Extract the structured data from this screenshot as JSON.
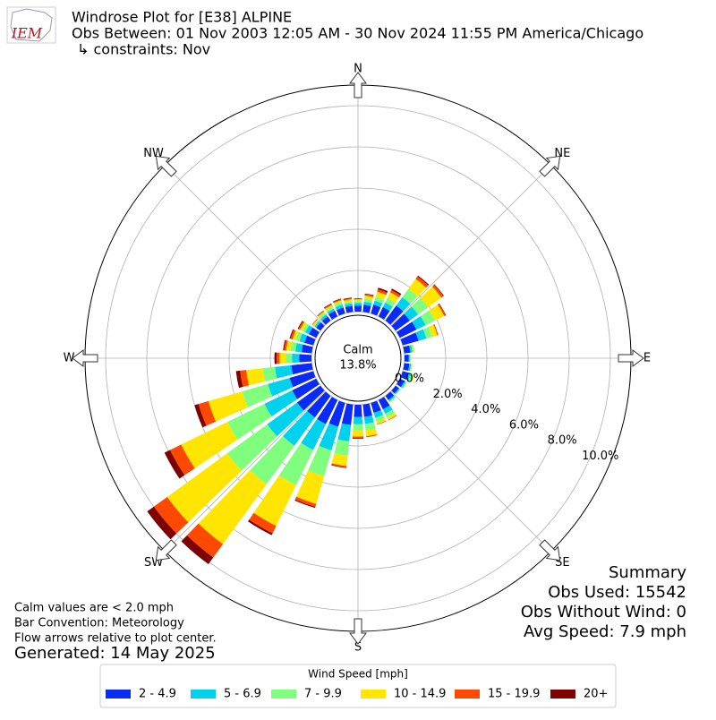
{
  "chart_data": {
    "type": "windrose",
    "logo_text": "IEM",
    "title": "Windrose Plot for [E38] ALPINE",
    "subtitle": "Obs Between: 01 Nov 2003 12:05 AM - 30 Nov 2024 11:55 PM America/Chicago",
    "constraints": "↳ constraints: Nov",
    "directions": [
      0,
      10,
      20,
      30,
      40,
      50,
      60,
      70,
      80,
      90,
      100,
      110,
      120,
      130,
      140,
      150,
      160,
      170,
      180,
      190,
      200,
      210,
      220,
      230,
      240,
      250,
      260,
      270,
      280,
      290,
      300,
      310,
      320,
      330,
      340,
      350
    ],
    "compass": [
      {
        "value": 0,
        "label": "N"
      },
      {
        "value": 45,
        "label": "NE"
      },
      {
        "value": 90,
        "label": "E"
      },
      {
        "value": 135,
        "label": "SE"
      },
      {
        "value": 180,
        "label": "S"
      },
      {
        "value": 225,
        "label": "SW"
      },
      {
        "value": 270,
        "label": "W"
      },
      {
        "value": 315,
        "label": "NW"
      }
    ],
    "rlim": [
      0,
      11
    ],
    "rticks": [
      {
        "value": 0,
        "label": "0.0%"
      },
      {
        "value": 2,
        "label": "2.0%"
      },
      {
        "value": 4,
        "label": "4.0%"
      },
      {
        "value": 6,
        "label": "6.0%"
      },
      {
        "value": 8,
        "label": "8.0%"
      },
      {
        "value": 10,
        "label": "10.0%"
      }
    ],
    "grid": true,
    "calm_label": "Calm",
    "calm_value": 13.8,
    "calm_value_label": "13.8%",
    "legend_title": "Wind Speed [mph]",
    "series": [
      {
        "name": "2 - 4.9",
        "color": "#0a2bf5",
        "values": [
          0.3,
          0.35,
          0.45,
          0.5,
          0.9,
          0.85,
          0.9,
          0.8,
          0.3,
          0.2,
          0.25,
          0.3,
          0.25,
          0.2,
          0.25,
          0.5,
          0.5,
          0.6,
          0.6,
          1.0,
          1.2,
          1.3,
          1.3,
          1.4,
          1.3,
          1.2,
          1.0,
          0.6,
          0.5,
          0.45,
          0.4,
          0.25,
          0.25,
          0.3,
          0.3,
          0.3
        ]
      },
      {
        "name": "5 - 6.9",
        "color": "#00d2ee",
        "values": [
          0.12,
          0.15,
          0.2,
          0.25,
          0.5,
          0.5,
          0.5,
          0.4,
          0.1,
          0.06,
          0.08,
          0.12,
          0.08,
          0.06,
          0.08,
          0.25,
          0.25,
          0.35,
          0.35,
          0.8,
          1.2,
          1.4,
          1.7,
          1.8,
          1.5,
          1.1,
          0.8,
          0.35,
          0.3,
          0.25,
          0.2,
          0.1,
          0.12,
          0.12,
          0.15,
          0.12
        ]
      },
      {
        "name": "7 - 9.9",
        "color": "#80ff7f",
        "values": [
          0.1,
          0.15,
          0.2,
          0.25,
          0.5,
          0.6,
          0.5,
          0.3,
          0.07,
          0.04,
          0.05,
          0.1,
          0.05,
          0.03,
          0.05,
          0.2,
          0.2,
          0.3,
          0.3,
          0.7,
          1.3,
          1.9,
          2.3,
          2.4,
          2.0,
          1.3,
          0.6,
          0.3,
          0.25,
          0.2,
          0.15,
          0.07,
          0.1,
          0.1,
          0.12,
          0.1
        ]
      },
      {
        "name": "10 - 14.9",
        "color": "#ffe500",
        "values": [
          0.08,
          0.15,
          0.25,
          0.3,
          0.6,
          0.8,
          0.5,
          0.25,
          0.03,
          0,
          0.02,
          0.08,
          0.02,
          0.01,
          0.02,
          0.12,
          0.12,
          0.3,
          0.3,
          0.5,
          1.4,
          2.2,
          3.6,
          3.6,
          2.5,
          1.7,
          0.8,
          0.3,
          0.2,
          0.15,
          0.13,
          0.05,
          0.08,
          0.1,
          0.1,
          0.1
        ]
      },
      {
        "name": "15 - 19.9",
        "color": "#ff4800",
        "values": [
          0.03,
          0.07,
          0.12,
          0.13,
          0.15,
          0.12,
          0.08,
          0.05,
          0,
          0,
          0,
          0,
          0,
          0,
          0,
          0.03,
          0.03,
          0.05,
          0.07,
          0.07,
          0.15,
          0.4,
          0.8,
          0.8,
          0.6,
          0.5,
          0.3,
          0.15,
          0.1,
          0.1,
          0.08,
          0.02,
          0.03,
          0.05,
          0.05,
          0.05
        ]
      },
      {
        "name": "20+",
        "color": "#7f0000",
        "values": [
          0.02,
          0.03,
          0.08,
          0.07,
          0.05,
          0.03,
          0.02,
          0,
          0,
          0,
          0,
          0,
          0,
          0,
          0,
          0,
          0,
          0,
          0.03,
          0.03,
          0.05,
          0.1,
          0.4,
          0.4,
          0.3,
          0.2,
          0.2,
          0.1,
          0.05,
          0.05,
          0.04,
          0.01,
          0.02,
          0.03,
          0.03,
          0.03
        ]
      }
    ],
    "notes": [
      "Calm values are < 2.0 mph",
      "Bar Convention: Meteorology",
      "Flow arrows relative to plot center."
    ],
    "generated": "Generated: 14 May 2025",
    "summary": [
      "Summary",
      "Obs Used: 15542",
      "Obs Without Wind: 0",
      "Avg Speed: 7.9 mph"
    ]
  }
}
